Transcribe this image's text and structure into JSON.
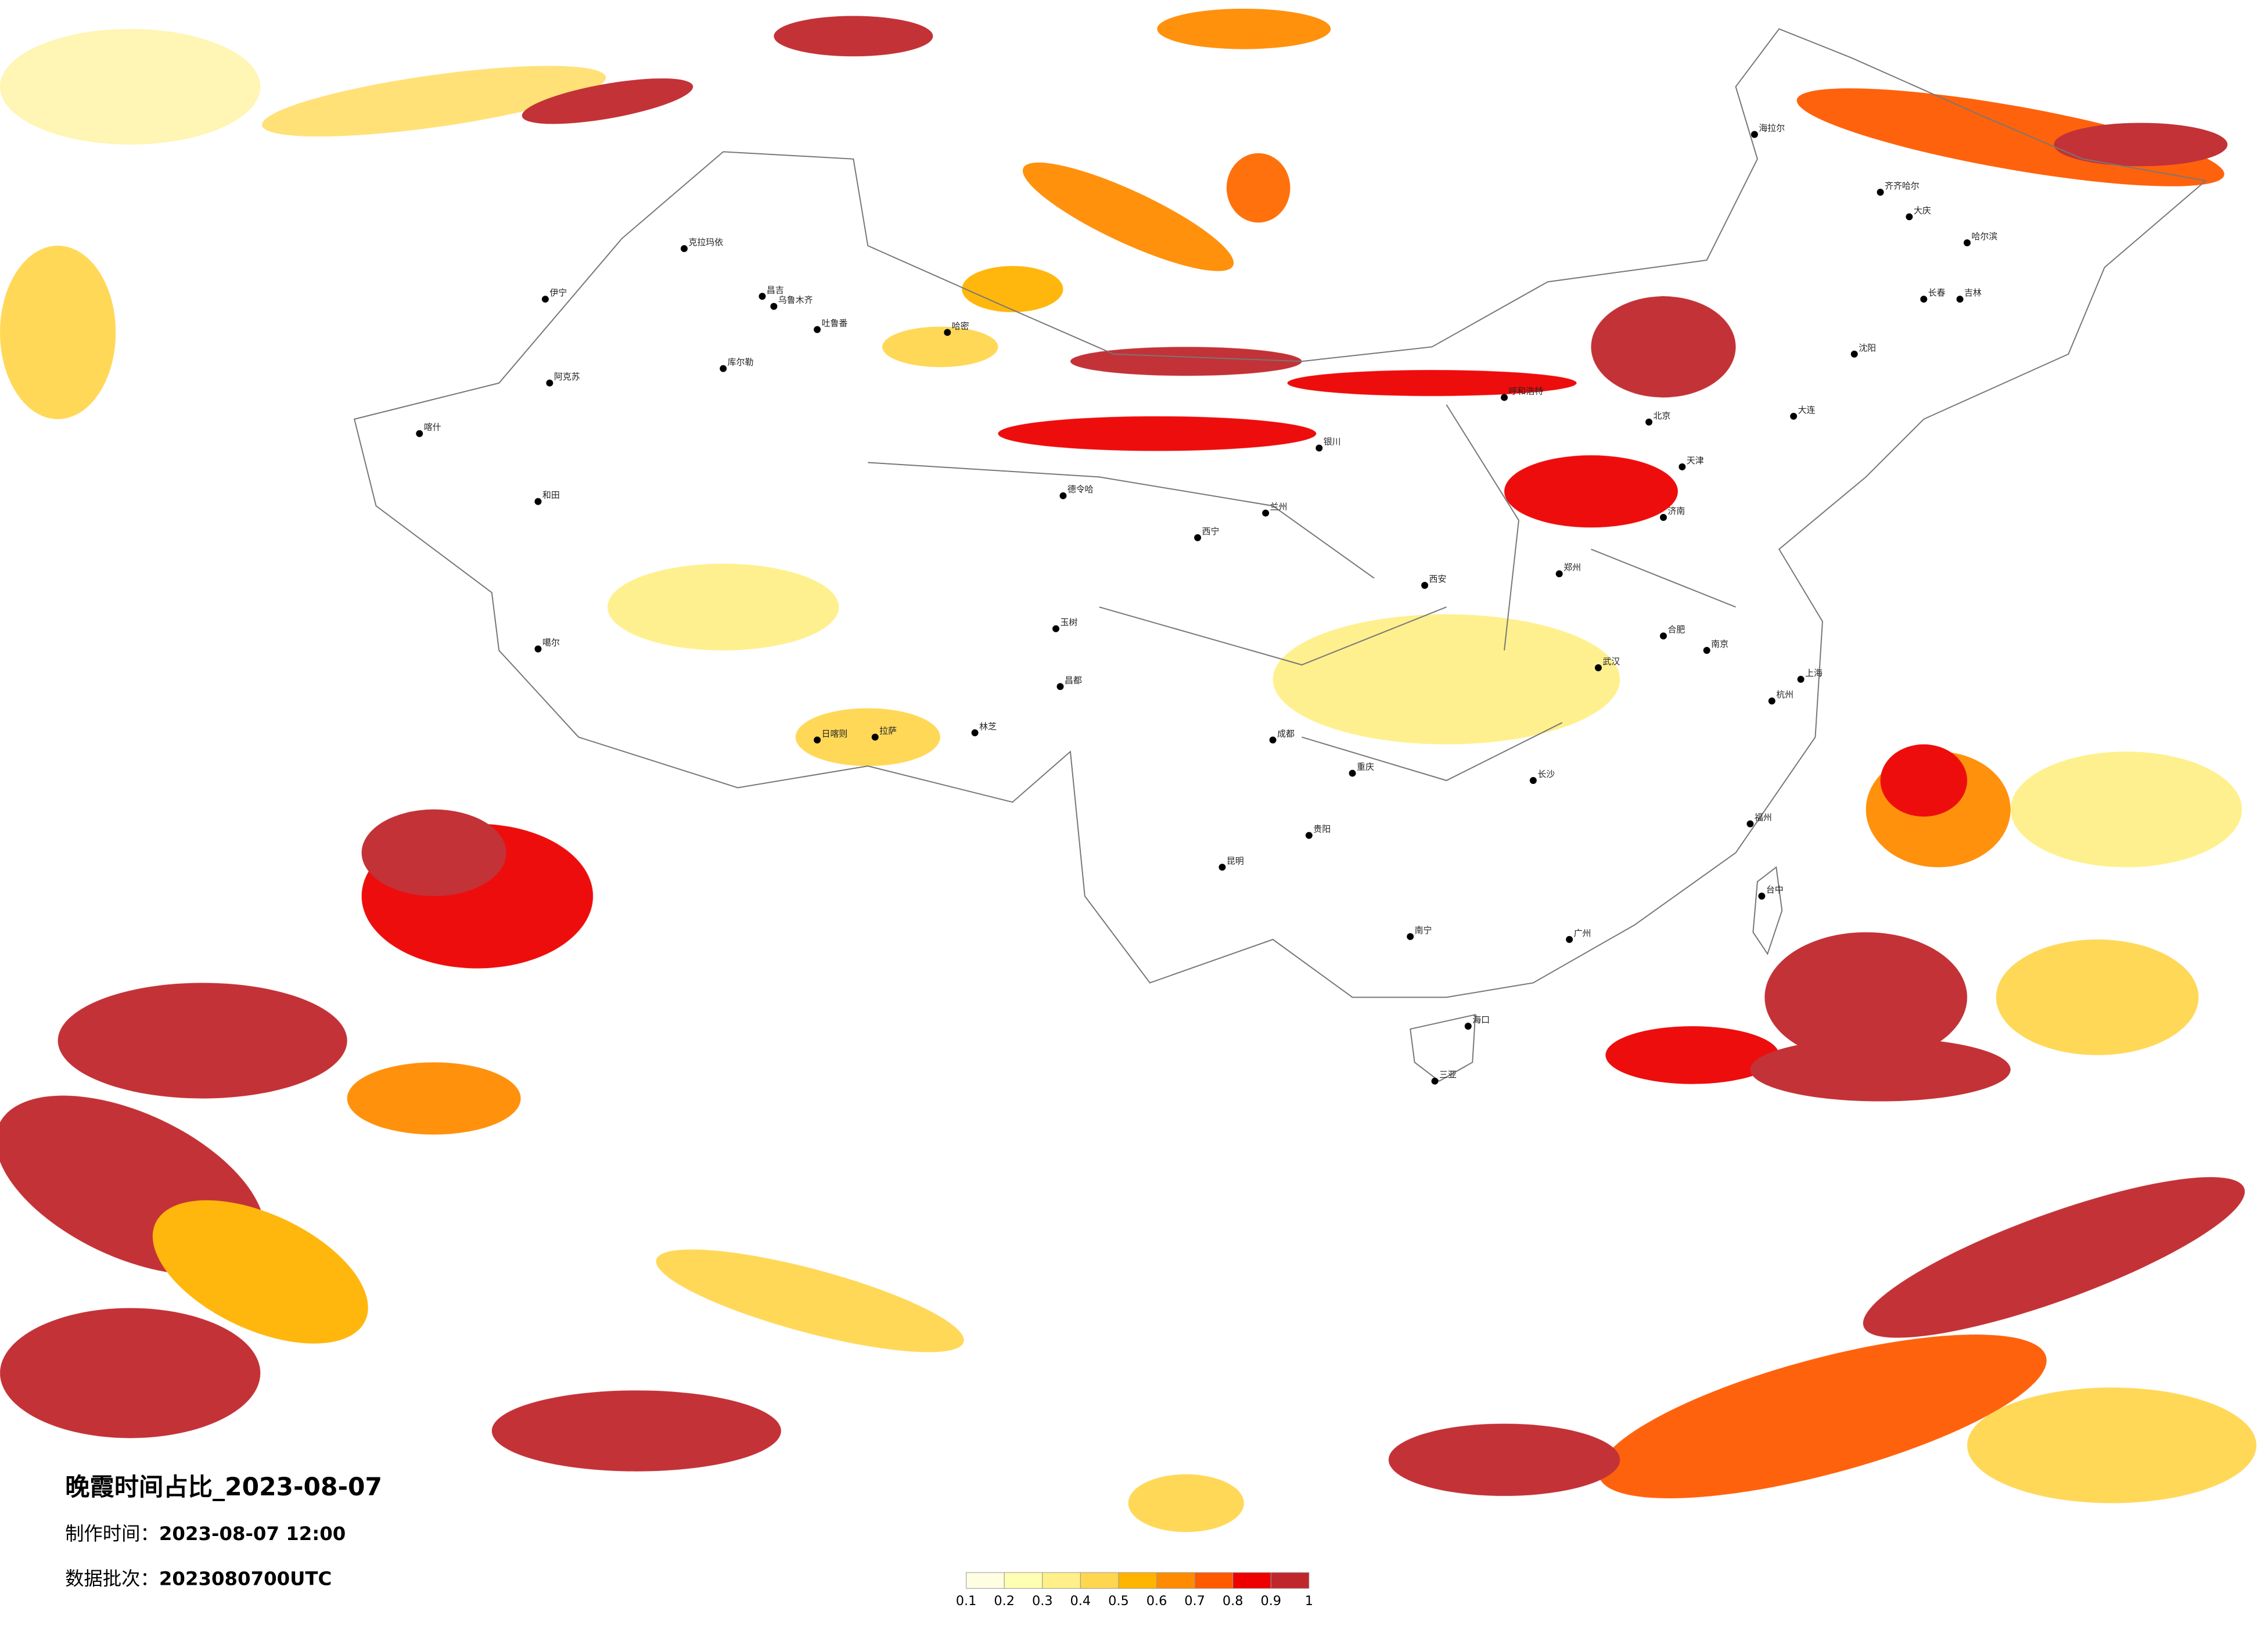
{
  "title": "晚霞时间占比_2023-08-07",
  "made_time": {
    "label": "制作时间：",
    "value": "2023-08-07 12:00"
  },
  "batch": {
    "label": "数据批次：",
    "value": "2023080700UTC"
  },
  "legend": {
    "ticks": [
      0.1,
      0.2,
      0.3,
      0.4,
      0.5,
      0.6,
      0.7,
      0.8,
      0.9,
      1
    ],
    "colors": [
      "#fffde2",
      "#ffffb3",
      "#fff08a",
      "#ffd650",
      "#ffb400",
      "#ff8c00",
      "#ff5a00",
      "#ee0000",
      "#c0272d"
    ]
  },
  "cities": [
    "克拉玛依",
    "伊宁",
    "昌吉",
    "乌鲁木齐",
    "吐鲁番",
    "库尔勒",
    "阿克苏",
    "喀什",
    "和田",
    "哈密",
    "德令哈",
    "噶尔",
    "日喀则",
    "拉萨",
    "林芝",
    "玉树",
    "昌都",
    "西宁",
    "兰州",
    "银川",
    "呼和浩特",
    "北京",
    "天津",
    "济南",
    "郑州",
    "西安",
    "武汉",
    "成都",
    "重庆",
    "贵阳",
    "昆明",
    "南宁",
    "广州",
    "海口",
    "三亚",
    "福州",
    "台中",
    "杭州",
    "上海",
    "沈阳",
    "长春",
    "吉林",
    "哈尔滨",
    "齐齐哈尔",
    "大庆",
    "海拉尔",
    "大连",
    "南京",
    "合肥",
    "长沙"
  ]
}
